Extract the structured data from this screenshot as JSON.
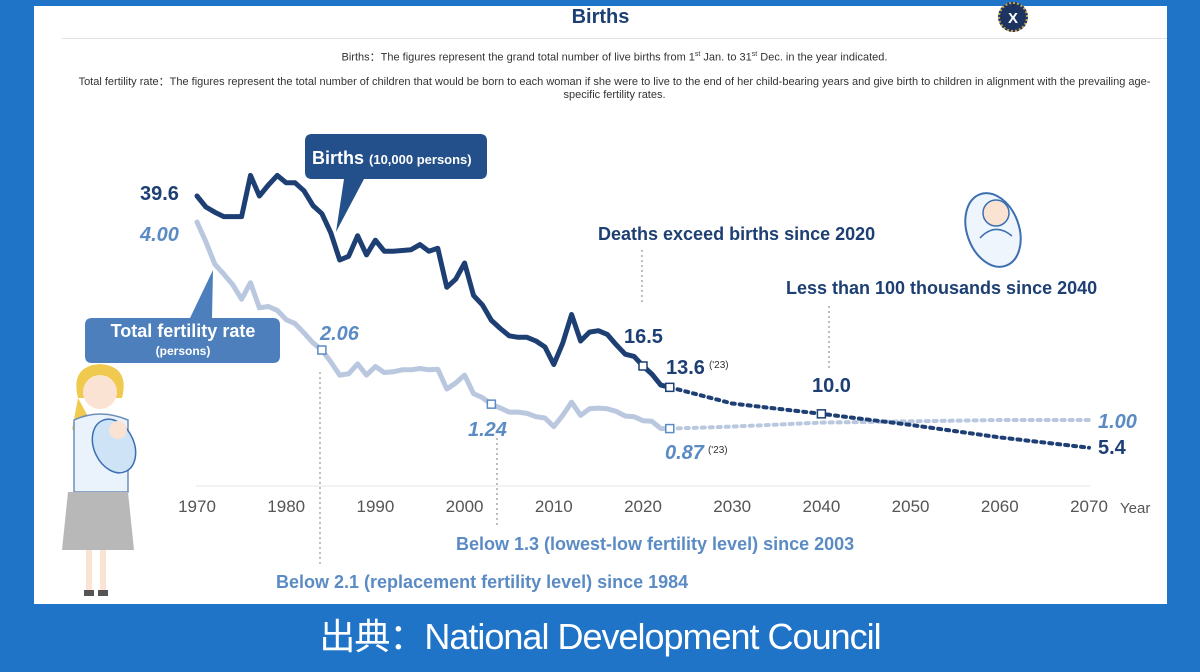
{
  "page": {
    "title": "Births",
    "close_label": "X",
    "definition_births": "Births：The figures represent the grand total number of live births from 1st Jan. to 31st Dec. in the year indicated.",
    "definition_births_parts": [
      "Births：The figures represent the grand total number of live births from 1",
      "st",
      " Jan. to 31",
      "st",
      " Dec. in the year indicated."
    ],
    "definition_tfr": "Total fertility rate：The figures represent the total number of children that would be born to each woman if she were to live to the end of her child-bearing years and give birth to children in alignment with the prevailing age-specific fertility rates.",
    "source": "出典：National Development Council",
    "colors": {
      "births": "#1d3f73",
      "births_label_bg": "#23508a",
      "tfr": "#b9c7df",
      "tfr_label": "#5b8bc4",
      "tfr_label_bg": "#4c7fbc",
      "annotation": "#5b8bc4",
      "background": "#1f74c8"
    }
  },
  "chart_data": {
    "type": "line",
    "title": "Births",
    "xlabel": "Year",
    "xlim": [
      1970,
      2070
    ],
    "xticks": [
      "1970",
      "1980",
      "1990",
      "2000",
      "2010",
      "2020",
      "2030",
      "2040",
      "2050",
      "2060",
      "2070"
    ],
    "series": [
      {
        "name": "Births (10,000 persons)",
        "name_main": "Births",
        "name_unit": "(10,000 persons)",
        "unit": "10,000 persons",
        "x": [
          1970,
          1971,
          1972,
          1973,
          1974,
          1975,
          1976,
          1977,
          1978,
          1979,
          1980,
          1981,
          1982,
          1983,
          1984,
          1985,
          1986,
          1987,
          1988,
          1989,
          1990,
          1991,
          1992,
          1993,
          1994,
          1995,
          1996,
          1997,
          1998,
          1999,
          2000,
          2001,
          2002,
          2003,
          2004,
          2005,
          2006,
          2007,
          2008,
          2009,
          2010,
          2011,
          2012,
          2013,
          2014,
          2015,
          2016,
          2017,
          2018,
          2019,
          2020,
          2021,
          2022,
          2023
        ],
        "y": [
          39.6,
          38.1,
          37.4,
          36.8,
          36.8,
          36.8,
          42.4,
          39.6,
          41.1,
          42.4,
          41.4,
          41.4,
          40.3,
          38.3,
          37.2,
          34.6,
          30.9,
          31.4,
          34.2,
          31.6,
          33.6,
          32.1,
          32.1,
          32.2,
          32.3,
          33.0,
          32.1,
          32.5,
          27.2,
          28.3,
          30.5,
          26.1,
          24.8,
          22.7,
          21.6,
          20.6,
          20.4,
          20.4,
          19.9,
          19.1,
          16.7,
          19.6,
          23.5,
          19.9,
          21.1,
          21.3,
          20.8,
          19.4,
          18.1,
          17.8,
          16.5,
          15.4,
          13.9,
          13.6
        ],
        "projection": {
          "x": [
            2023,
            2030,
            2040,
            2050,
            2060,
            2070
          ],
          "y": [
            13.6,
            11.4,
            10.0,
            8.5,
            6.8,
            5.4
          ]
        }
      },
      {
        "name": "Total fertility rate (persons)",
        "name_main": "Total fertility rate",
        "name_unit": "(persons)",
        "unit": "persons",
        "x": [
          1970,
          1971,
          1972,
          1973,
          1974,
          1975,
          1976,
          1977,
          1978,
          1979,
          1980,
          1981,
          1982,
          1983,
          1984,
          1985,
          1986,
          1987,
          1988,
          1989,
          1990,
          1991,
          1992,
          1993,
          1994,
          1995,
          1996,
          1997,
          1998,
          1999,
          2000,
          2001,
          2002,
          2003,
          2004,
          2005,
          2006,
          2007,
          2008,
          2009,
          2010,
          2011,
          2012,
          2013,
          2014,
          2015,
          2016,
          2017,
          2018,
          2019,
          2020,
          2021,
          2022,
          2023
        ],
        "y": [
          4.0,
          3.7,
          3.36,
          3.21,
          3.05,
          2.83,
          3.08,
          2.7,
          2.72,
          2.66,
          2.52,
          2.46,
          2.32,
          2.17,
          2.06,
          1.88,
          1.68,
          1.7,
          1.85,
          1.68,
          1.81,
          1.72,
          1.73,
          1.76,
          1.76,
          1.78,
          1.76,
          1.77,
          1.47,
          1.56,
          1.68,
          1.4,
          1.34,
          1.24,
          1.18,
          1.12,
          1.12,
          1.1,
          1.05,
          1.03,
          0.9,
          1.07,
          1.27,
          1.07,
          1.17,
          1.18,
          1.17,
          1.13,
          1.06,
          1.05,
          0.99,
          0.98,
          0.87,
          0.87
        ],
        "projection": {
          "x": [
            2023,
            2030,
            2040,
            2050,
            2060,
            2070
          ],
          "y": [
            0.87,
            0.9,
            0.96,
            0.98,
            1.0,
            1.0
          ]
        }
      }
    ],
    "data_labels": {
      "births_1970": "39.6",
      "tfr_1970": "4.00",
      "tfr_1984": "2.06",
      "tfr_2003": "1.24",
      "births_2020": "16.5",
      "births_2023": "13.6",
      "births_2023_note": "('23)",
      "tfr_2023": "0.87",
      "tfr_2023_note": "('23)",
      "births_2040": "10.0",
      "births_2070": "5.4",
      "tfr_2070": "1.00"
    },
    "annotations": {
      "deaths_exceed": "Deaths exceed births since 2020",
      "less_than_100k": "Less than 100 thousands since 2040",
      "below_1_3": "Below 1.3 (lowest-low fertility level) since 2003",
      "below_2_1": "Below 2.1 (replacement fertility level) since 1984"
    }
  }
}
